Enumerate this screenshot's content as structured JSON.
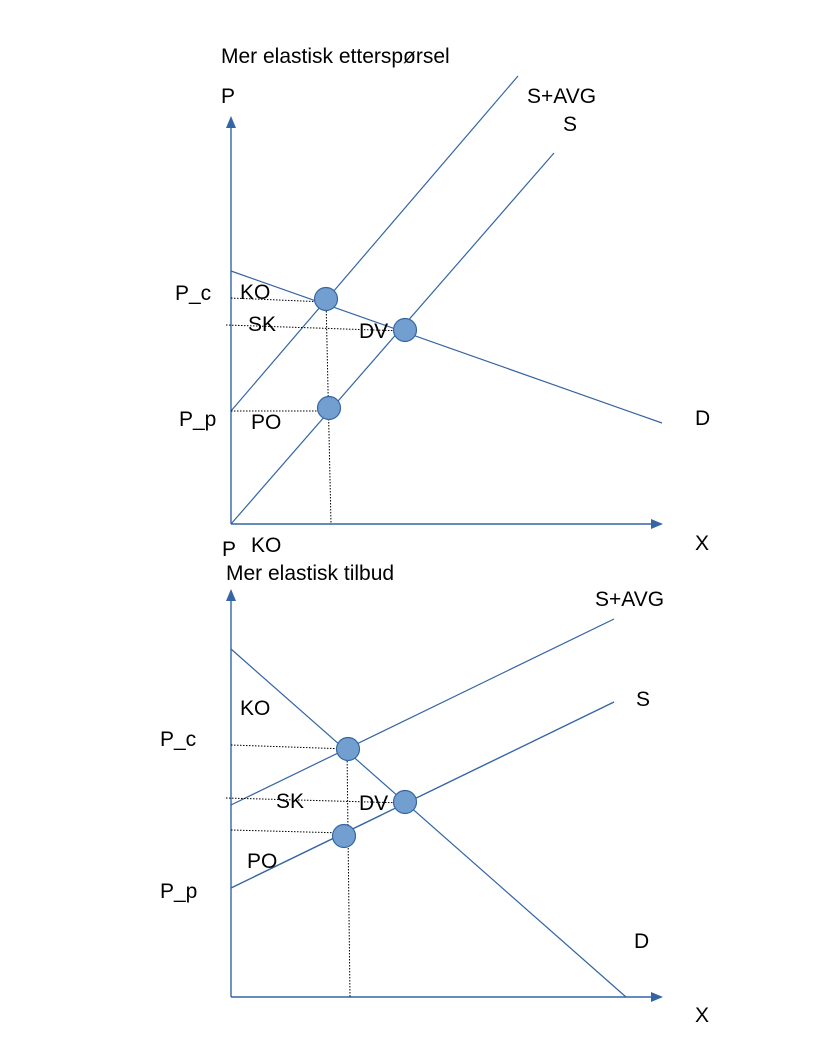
{
  "colors": {
    "line": "#3465a4",
    "point_fill": "#729fcf",
    "point_stroke": "#3465a4",
    "guide": "#000000",
    "text": "#000000"
  },
  "top": {
    "title": "Mer elastisk etterspørsel",
    "y_axis_label": "P",
    "x_axis_label": "X",
    "supply_tax_label": "S+AVG",
    "supply_label": "S",
    "demand_label": "D",
    "pc_label": "P_c",
    "pp_label": "P_p",
    "ko_label": "KO",
    "sk_label": "SK",
    "dv_label": "DV",
    "po_label": "PO",
    "ko_axis_label": "KO"
  },
  "bottom": {
    "y_axis_label": "P",
    "title": "Mer elastisk tilbud",
    "x_axis_label": "X",
    "supply_tax_label": "S+AVG",
    "supply_label": "S",
    "demand_label": "D",
    "pc_label": "P_c",
    "pp_label": "P_p",
    "ko_label": "KO",
    "sk_label": "SK",
    "dv_label": "DV",
    "po_label": "PO"
  }
}
